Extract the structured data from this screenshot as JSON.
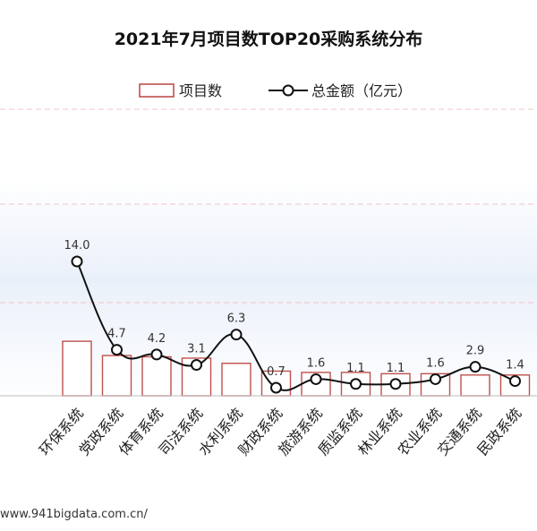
{
  "chart_data": {
    "type": "bar",
    "title": "2021年7月项目数TOP20采购系统分布",
    "categories": [
      "环保系统",
      "党政系统",
      "体育系统",
      "司法系统",
      "水利系统",
      "财政系统",
      "旅游系统",
      "质监系统",
      "林业系统",
      "农业系统",
      "交通系统",
      "民政系统"
    ],
    "series": [
      {
        "name": "项目数",
        "kind": "bar",
        "color": "#c0504d",
        "values": [
          42,
          31,
          30,
          29,
          25,
          19,
          18,
          18,
          17,
          17,
          16,
          16
        ]
      },
      {
        "name": "总金额（亿元）",
        "kind": "line",
        "color": "#111111",
        "values": [
          14.0,
          4.7,
          4.2,
          3.1,
          6.3,
          0.7,
          1.6,
          1.1,
          1.1,
          1.6,
          2.9,
          1.4
        ]
      }
    ],
    "legend": {
      "position": "top-center"
    },
    "grid": true
  },
  "footer": {
    "source": "www.941bigdata.com.cn/"
  }
}
